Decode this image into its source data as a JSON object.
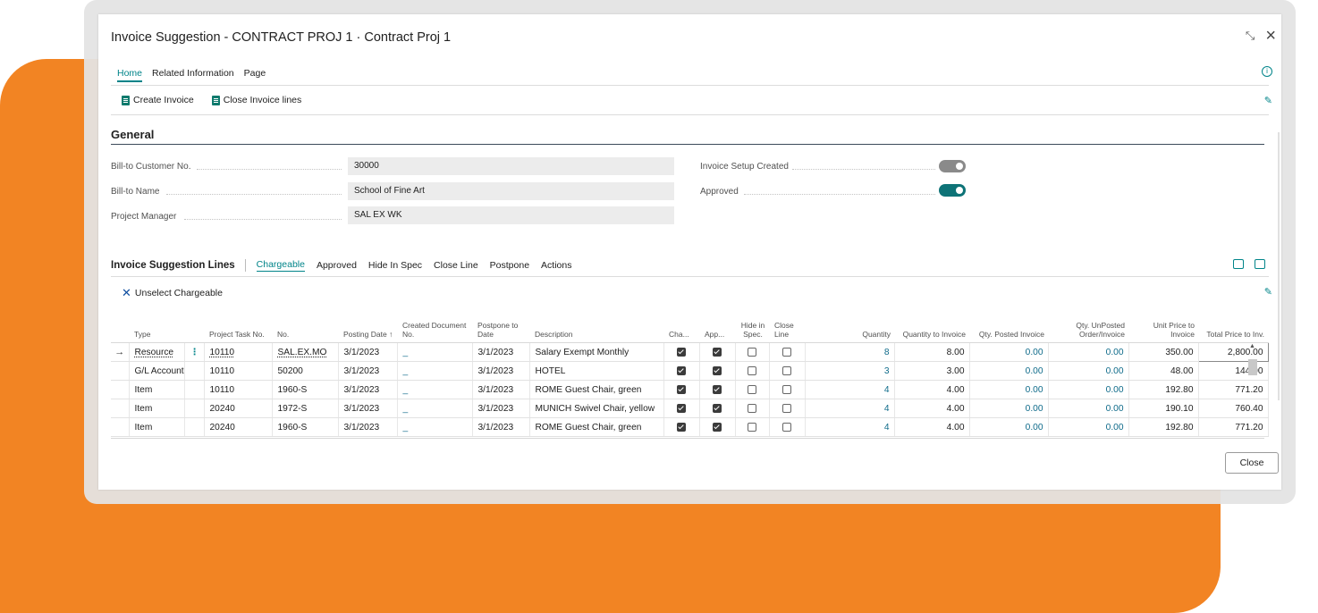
{
  "dialog": {
    "title": "Invoice Suggestion - CONTRACT PROJ 1 · Contract Proj 1",
    "collapse_icon": "collapse-arrows-icon",
    "close_icon": "close-icon"
  },
  "tabs": [
    "Home",
    "Related Information",
    "Page"
  ],
  "actions": {
    "create_invoice": "Create Invoice",
    "close_invoice_lines": "Close Invoice lines"
  },
  "general": {
    "title": "General",
    "bill_to_customer_label": "Bill-to Customer No.",
    "bill_to_customer_value": "30000",
    "bill_to_name_label": "Bill-to Name",
    "bill_to_name_value": "School of Fine Art",
    "project_manager_label": "Project Manager",
    "project_manager_value": "SAL EX WK",
    "invoice_setup_label": "Invoice Setup Created",
    "invoice_setup_value": false,
    "approved_label": "Approved",
    "approved_value": true
  },
  "lines": {
    "title": "Invoice Suggestion Lines",
    "tabs": [
      "Chargeable",
      "Approved",
      "Hide In Spec",
      "Close Line",
      "Postpone",
      "Actions"
    ],
    "unselect_label": "Unselect Chargeable",
    "columns": {
      "type": "Type",
      "task": "Project Task No.",
      "no": "No.",
      "posting": "Posting Date ↑",
      "created": "Created Document No.",
      "postpone": "Postpone to Date",
      "desc": "Description",
      "cha": "Cha...",
      "app": "App...",
      "hide": "Hide in Spec.",
      "close": "Close Line",
      "qty": "Quantity",
      "qty_inv": "Quantity to Invoice",
      "qty_posted": "Qty. Posted Invoice",
      "qty_unposted": "Qty. UnPosted Order/Invoice",
      "unit_price": "Unit Price to Invoice",
      "total_price": "Total Price to Inv."
    },
    "rows": [
      {
        "type": "Resource",
        "task": "10110",
        "no": "SAL.EX.MO",
        "posting": "3/1/2023",
        "created": "_",
        "postpone": "3/1/2023",
        "desc": "Salary Exempt Monthly",
        "cha": true,
        "app": true,
        "hide": false,
        "close": false,
        "qty": "8",
        "qty_inv": "8.00",
        "qty_posted": "0.00",
        "qty_unposted": "0.00",
        "unit_price": "350.00",
        "total_price": "2,800.00"
      },
      {
        "type": "G/L Account",
        "task": "10110",
        "no": "50200",
        "posting": "3/1/2023",
        "created": "_",
        "postpone": "3/1/2023",
        "desc": "HOTEL",
        "cha": true,
        "app": true,
        "hide": false,
        "close": false,
        "qty": "3",
        "qty_inv": "3.00",
        "qty_posted": "0.00",
        "qty_unposted": "0.00",
        "unit_price": "48.00",
        "total_price": "144.00"
      },
      {
        "type": "Item",
        "task": "10110",
        "no": "1960-S",
        "posting": "3/1/2023",
        "created": "_",
        "postpone": "3/1/2023",
        "desc": "ROME Guest Chair, green",
        "cha": true,
        "app": true,
        "hide": false,
        "close": false,
        "qty": "4",
        "qty_inv": "4.00",
        "qty_posted": "0.00",
        "qty_unposted": "0.00",
        "unit_price": "192.80",
        "total_price": "771.20"
      },
      {
        "type": "Item",
        "task": "20240",
        "no": "1972-S",
        "posting": "3/1/2023",
        "created": "_",
        "postpone": "3/1/2023",
        "desc": "MUNICH Swivel Chair, yellow",
        "cha": true,
        "app": true,
        "hide": false,
        "close": false,
        "qty": "4",
        "qty_inv": "4.00",
        "qty_posted": "0.00",
        "qty_unposted": "0.00",
        "unit_price": "190.10",
        "total_price": "760.40"
      },
      {
        "type": "Item",
        "task": "20240",
        "no": "1960-S",
        "posting": "3/1/2023",
        "created": "_",
        "postpone": "3/1/2023",
        "desc": "ROME Guest Chair, green",
        "cha": true,
        "app": true,
        "hide": false,
        "close": false,
        "qty": "4",
        "qty_inv": "4.00",
        "qty_posted": "0.00",
        "qty_unposted": "0.00",
        "unit_price": "192.80",
        "total_price": "771.20"
      }
    ]
  },
  "footer": {
    "close_label": "Close"
  },
  "colors": {
    "accent": "#008489",
    "brand_orange": "#f28423",
    "toggle_on": "#0e7377",
    "toggle_off": "#8a8a8a"
  }
}
